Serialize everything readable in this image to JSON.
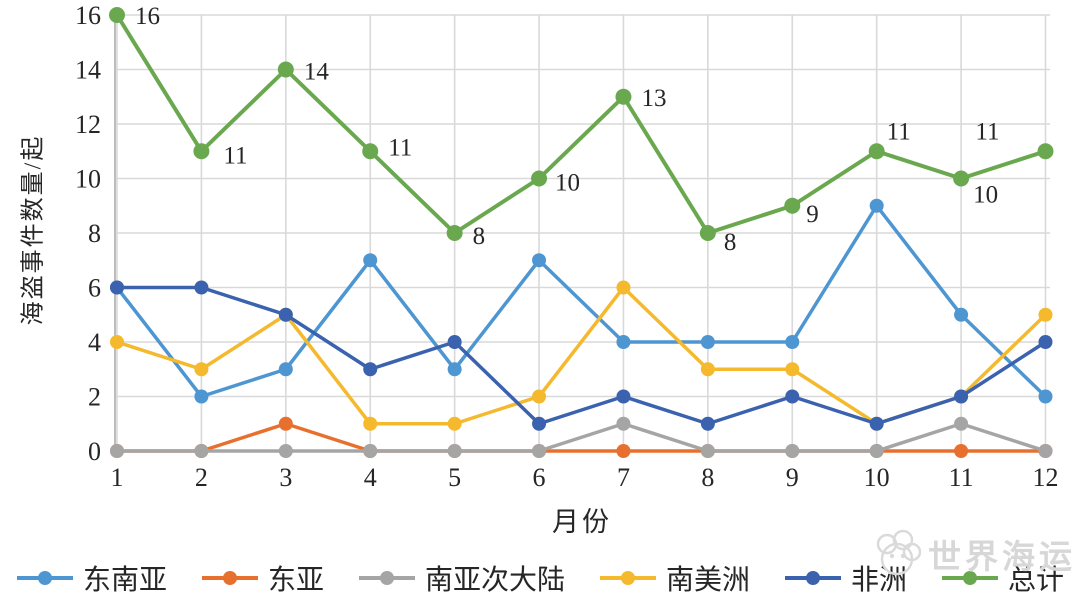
{
  "chart_data": {
    "type": "line",
    "title": "",
    "xlabel": "月份",
    "ylabel": "海盗事件数量/起",
    "x": [
      1,
      2,
      3,
      4,
      5,
      6,
      7,
      8,
      9,
      10,
      11,
      12
    ],
    "ylim": [
      0,
      16
    ],
    "ytick_step": 2,
    "grid": true,
    "legend_position": "bottom",
    "series": [
      {
        "name": "东南亚",
        "color": "#4E96D2",
        "values": [
          6,
          2,
          3,
          7,
          3,
          7,
          4,
          4,
          4,
          9,
          5,
          2
        ],
        "show_labels": false
      },
      {
        "name": "东亚",
        "color": "#E8702E",
        "values": [
          0,
          0,
          1,
          0,
          0,
          0,
          0,
          0,
          0,
          0,
          0,
          0
        ],
        "show_labels": false
      },
      {
        "name": "南亚次大陆",
        "color": "#A5A5A5",
        "values": [
          0,
          0,
          0,
          0,
          0,
          0,
          1,
          0,
          0,
          0,
          1,
          0
        ],
        "show_labels": false
      },
      {
        "name": "南美洲",
        "color": "#F5B92E",
        "values": [
          4,
          3,
          5,
          1,
          1,
          2,
          6,
          3,
          3,
          1,
          2,
          5
        ],
        "show_labels": false
      },
      {
        "name": "非洲",
        "color": "#3A62AE",
        "values": [
          6,
          6,
          5,
          3,
          4,
          1,
          2,
          1,
          2,
          1,
          2,
          4
        ],
        "show_labels": false
      },
      {
        "name": "总计",
        "color": "#6AA84F",
        "values": [
          16,
          11,
          14,
          11,
          8,
          10,
          13,
          8,
          9,
          11,
          10,
          11
        ],
        "show_labels": true
      }
    ],
    "colors": {
      "gridline": "#d9d9d9",
      "axis_line": "#bcbcbc",
      "tick_text": "#262626"
    }
  },
  "watermark": {
    "text": "世界海运"
  }
}
